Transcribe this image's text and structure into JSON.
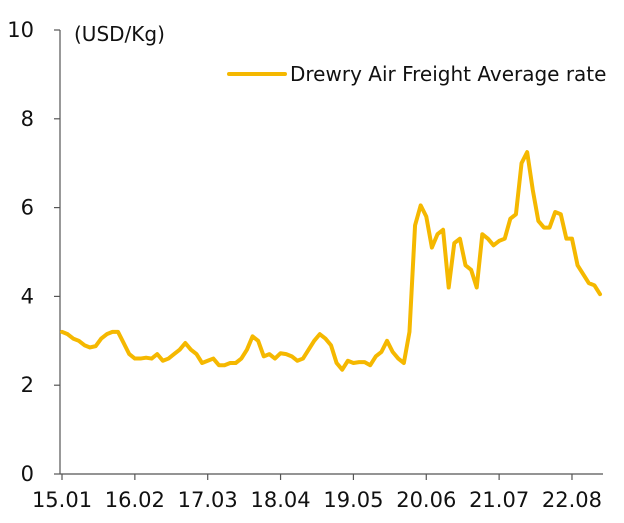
{
  "chart_data": {
    "type": "line",
    "title": "",
    "xlabel": "",
    "ylabel": "(USD/Kg)",
    "ylim": [
      0,
      10
    ],
    "yticks": [
      0,
      2,
      4,
      6,
      8,
      10
    ],
    "grid": false,
    "legend_position": "top-right",
    "xtick_labels": [
      "15.01",
      "16.02",
      "17.03",
      "18.04",
      "19.05",
      "20.06",
      "21.07",
      "22.08"
    ],
    "colors": {
      "series": "#F5B800",
      "axis": "#555555",
      "text": "#111111"
    },
    "series": [
      {
        "name": "Drewry Air Freight Average rate",
        "period_start": "2015-01",
        "values": [
          3.2,
          3.15,
          3.05,
          3.0,
          2.9,
          2.85,
          2.88,
          3.05,
          3.15,
          3.2,
          3.2,
          2.95,
          2.7,
          2.6,
          2.6,
          2.62,
          2.6,
          2.7,
          2.55,
          2.6,
          2.7,
          2.8,
          2.95,
          2.8,
          2.7,
          2.5,
          2.55,
          2.6,
          2.45,
          2.45,
          2.5,
          2.5,
          2.6,
          2.8,
          3.1,
          3.0,
          2.65,
          2.7,
          2.6,
          2.72,
          2.7,
          2.65,
          2.55,
          2.6,
          2.8,
          3.0,
          3.15,
          3.05,
          2.9,
          2.5,
          2.35,
          2.55,
          2.5,
          2.52,
          2.52,
          2.45,
          2.65,
          2.75,
          3.0,
          2.75,
          2.6,
          2.5,
          3.2,
          5.6,
          6.05,
          5.8,
          5.1,
          5.4,
          5.5,
          4.2,
          5.2,
          5.3,
          4.7,
          4.6,
          4.2,
          5.4,
          5.3,
          5.15,
          5.25,
          5.3,
          5.75,
          5.85,
          7.0,
          7.25,
          6.4,
          5.7,
          5.55,
          5.55,
          5.9,
          5.85,
          5.3,
          5.3,
          4.7,
          4.5,
          4.3,
          4.25,
          4.05
        ]
      }
    ]
  }
}
